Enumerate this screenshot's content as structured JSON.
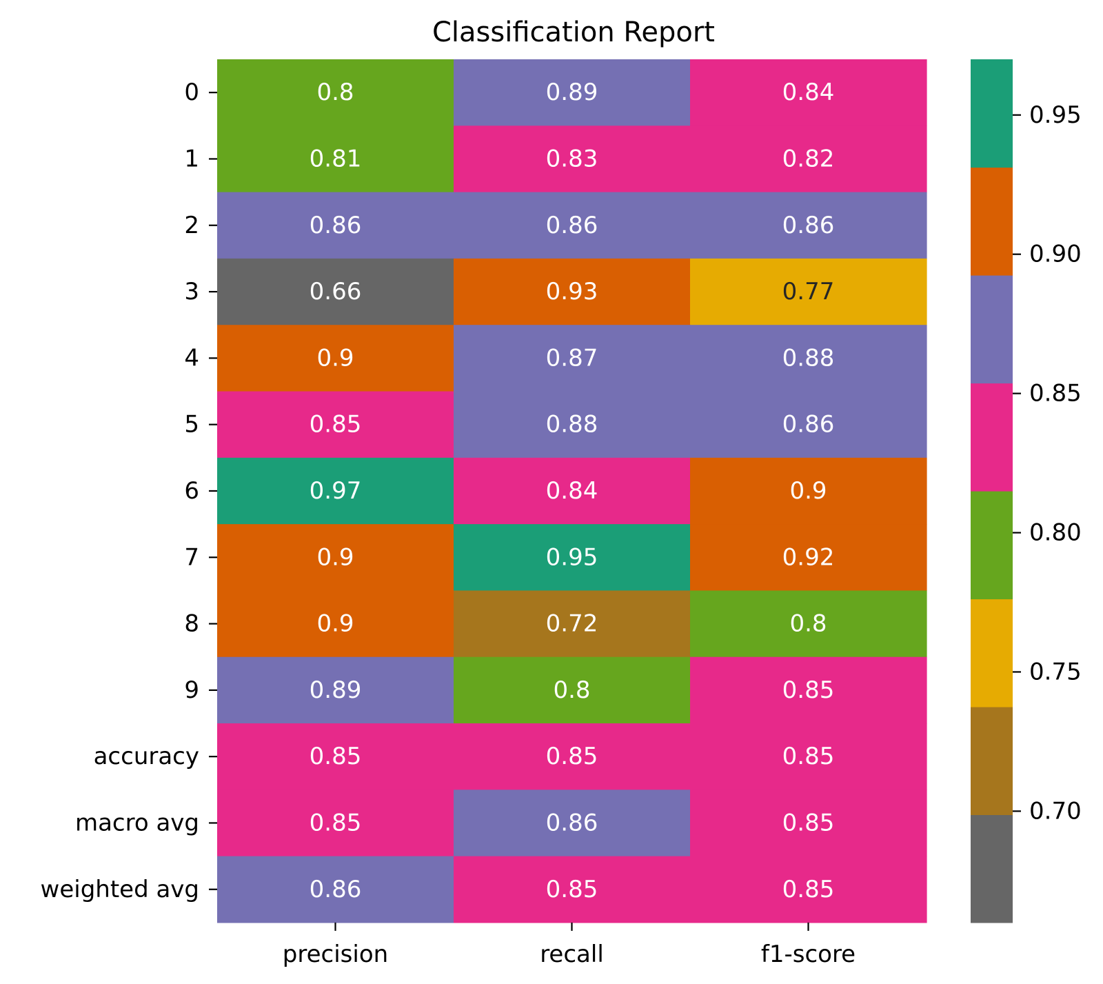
{
  "chart_data": {
    "type": "heatmap",
    "title": "Classification Report",
    "x_categories": [
      "precision",
      "recall",
      "f1-score"
    ],
    "y_categories": [
      "0",
      "1",
      "2",
      "3",
      "4",
      "5",
      "6",
      "7",
      "8",
      "9",
      "accuracy",
      "macro avg",
      "weighted avg"
    ],
    "values": [
      [
        0.8,
        0.89,
        0.84
      ],
      [
        0.81,
        0.83,
        0.82
      ],
      [
        0.86,
        0.86,
        0.86
      ],
      [
        0.66,
        0.93,
        0.77
      ],
      [
        0.9,
        0.87,
        0.88
      ],
      [
        0.85,
        0.88,
        0.86
      ],
      [
        0.97,
        0.84,
        0.9
      ],
      [
        0.9,
        0.95,
        0.92
      ],
      [
        0.9,
        0.72,
        0.8
      ],
      [
        0.89,
        0.8,
        0.85
      ],
      [
        0.85,
        0.85,
        0.85
      ],
      [
        0.85,
        0.86,
        0.85
      ],
      [
        0.86,
        0.85,
        0.85
      ]
    ],
    "cell_labels": [
      [
        "0.8",
        "0.89",
        "0.84"
      ],
      [
        "0.81",
        "0.83",
        "0.82"
      ],
      [
        "0.86",
        "0.86",
        "0.86"
      ],
      [
        "0.66",
        "0.93",
        "0.77"
      ],
      [
        "0.9",
        "0.87",
        "0.88"
      ],
      [
        "0.85",
        "0.88",
        "0.86"
      ],
      [
        "0.97",
        "0.84",
        "0.9"
      ],
      [
        "0.9",
        "0.95",
        "0.92"
      ],
      [
        "0.9",
        "0.72",
        "0.8"
      ],
      [
        "0.89",
        "0.8",
        "0.85"
      ],
      [
        "0.85",
        "0.85",
        "0.85"
      ],
      [
        "0.85",
        "0.86",
        "0.85"
      ],
      [
        "0.86",
        "0.85",
        "0.85"
      ]
    ],
    "colorbar": {
      "min": 0.66,
      "max": 0.97,
      "ticks": [
        0.7,
        0.75,
        0.8,
        0.85,
        0.9,
        0.95
      ],
      "tick_labels": [
        "0.70",
        "0.75",
        "0.80",
        "0.85",
        "0.90",
        "0.95"
      ],
      "colors": [
        "#666666",
        "#a6761d",
        "#e6ab02",
        "#66a61e",
        "#e7298a",
        "#7570b3",
        "#d95f02",
        "#1b9e77"
      ]
    },
    "light_text_color": "#ffffff",
    "dark_text_color": "#262626",
    "legend": "right",
    "grid": false
  }
}
